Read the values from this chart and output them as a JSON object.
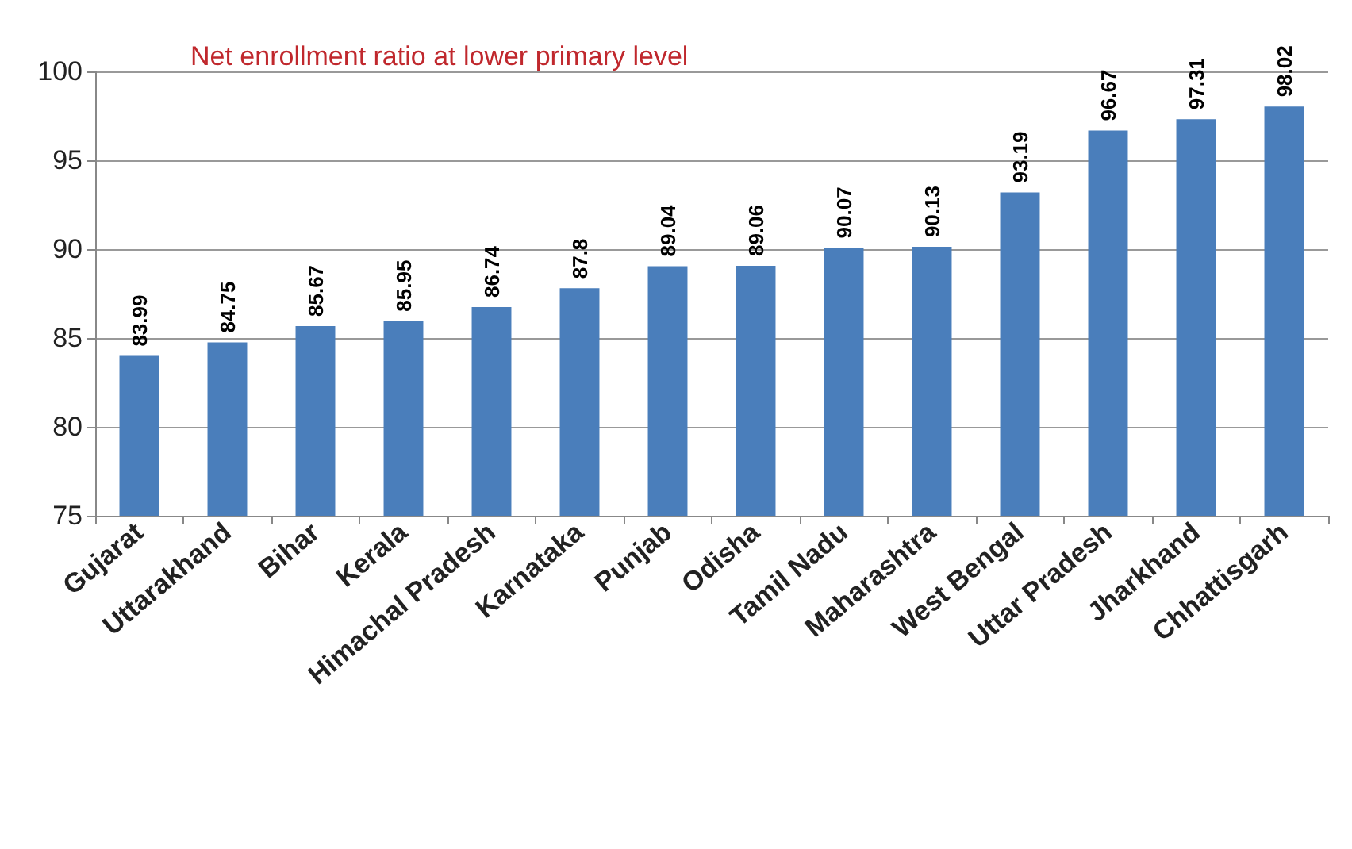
{
  "chart_data": {
    "type": "bar",
    "title": "Net enrollment ratio at lower primary level",
    "categories": [
      "Gujarat",
      "Uttarakhand",
      "Bihar",
      "Kerala",
      "Himachal Pradesh",
      "Karnataka",
      "Punjab",
      "Odisha",
      "Tamil Nadu",
      "Maharashtra",
      "West Bengal",
      "Uttar Pradesh",
      "Jharkhand",
      "Chhattisgarh"
    ],
    "values": [
      83.99,
      84.75,
      85.67,
      85.95,
      86.74,
      87.8,
      89.04,
      89.06,
      90.07,
      90.13,
      93.19,
      96.67,
      97.31,
      98.02
    ],
    "color": "#4a7ebb",
    "ylim": [
      75,
      100
    ],
    "yticks": [
      75,
      80,
      85,
      90,
      95,
      100
    ],
    "grid": "y",
    "data_labels": true
  }
}
